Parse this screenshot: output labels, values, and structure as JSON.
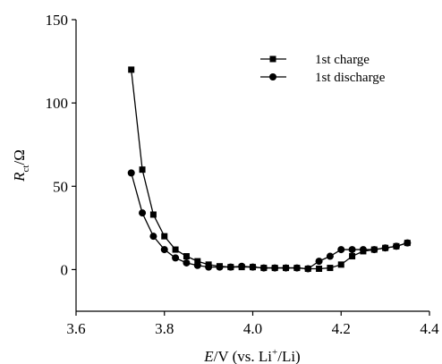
{
  "chart_data": {
    "type": "line",
    "xlabel": {
      "italic": "E",
      "main": "/V (vs. Li",
      "sup": "+",
      "tail": "/Li)"
    },
    "ylabel": {
      "italic": "R",
      "sub": "ct",
      "tail": "/Ω"
    },
    "xlim": [
      3.6,
      4.4
    ],
    "ylim": [
      -25,
      150
    ],
    "xticks": [
      "3.6",
      "3.8",
      "4.0",
      "4.2",
      "4.4"
    ],
    "yticks": [
      "0",
      "50",
      "100",
      "150"
    ],
    "grid": false,
    "legend_position": "top-right",
    "series": [
      {
        "name": "1st charge",
        "marker": "square",
        "color": "#000000",
        "x": [
          3.725,
          3.75,
          3.775,
          3.8,
          3.825,
          3.85,
          3.875,
          3.9,
          3.925,
          3.95,
          3.975,
          4.0,
          4.025,
          4.05,
          4.075,
          4.1,
          4.125,
          4.15,
          4.175,
          4.2,
          4.225,
          4.25,
          4.275,
          4.3,
          4.325,
          4.35
        ],
        "y": [
          120,
          60,
          33,
          20,
          12,
          8,
          5,
          3,
          2,
          1.5,
          1.5,
          1.5,
          1,
          1,
          1,
          1,
          0.5,
          0.5,
          1,
          3,
          8,
          11,
          12,
          13,
          14,
          16
        ]
      },
      {
        "name": "1st discharge",
        "marker": "circle",
        "color": "#000000",
        "x": [
          3.725,
          3.75,
          3.775,
          3.8,
          3.825,
          3.85,
          3.875,
          3.9,
          3.925,
          3.95,
          3.975,
          4.0,
          4.025,
          4.05,
          4.075,
          4.1,
          4.125,
          4.15,
          4.175,
          4.2,
          4.225,
          4.25,
          4.275,
          4.3,
          4.325,
          4.35
        ],
        "y": [
          58,
          34,
          20,
          12,
          7,
          4,
          2.5,
          1.5,
          1.5,
          1.5,
          2,
          1.5,
          1,
          1,
          1,
          1,
          0.5,
          5,
          8,
          12,
          12,
          12,
          12,
          13,
          14,
          16
        ]
      }
    ]
  }
}
